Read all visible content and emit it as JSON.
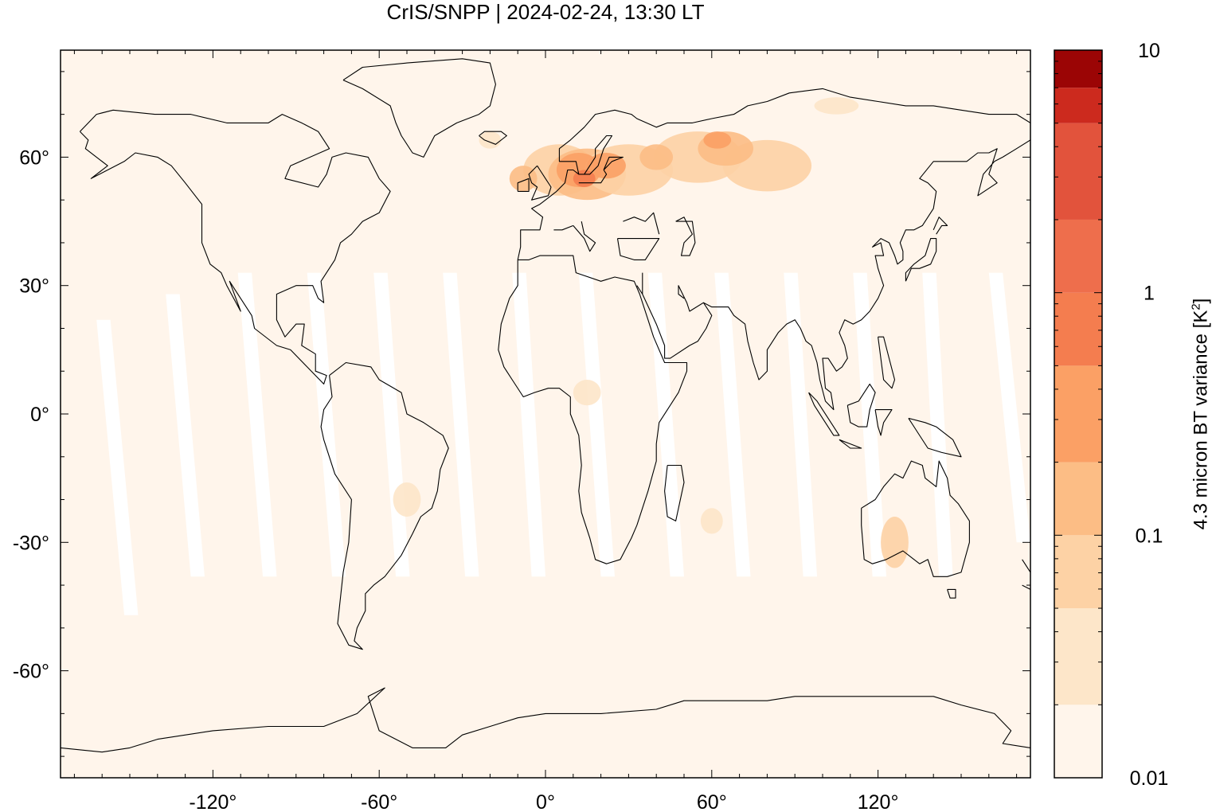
{
  "title": "CrIS/SNPP | 2024-02-24, 13:30 LT",
  "colorbar": {
    "label": "4.3 micron BT variance [K",
    "label_sup": "2",
    "label_end": "]",
    "scale": "log",
    "range": [
      0.01,
      10
    ],
    "tick_labels": [
      "10",
      "1",
      "0.1",
      "0.01"
    ],
    "levels": [
      {
        "lower": 0.01,
        "color": "#fff5eb"
      },
      {
        "lower": 0.02,
        "color": "#fde6c9"
      },
      {
        "lower": 0.05,
        "color": "#fdd2a5"
      },
      {
        "lower": 0.1,
        "color": "#fcbd85"
      },
      {
        "lower": 0.2,
        "color": "#fba065"
      },
      {
        "lower": 0.5,
        "color": "#f47d4f"
      },
      {
        "lower": 1,
        "color": "#ee6e4c"
      },
      {
        "lower": 2,
        "color": "#e2533c"
      },
      {
        "lower": 5,
        "color": "#cc2a1e"
      },
      {
        "lower": 7,
        "color": "#9b0505"
      }
    ]
  },
  "map": {
    "projection": "equirectangular",
    "lon_range": [
      -175,
      175
    ],
    "lat_range": [
      -85,
      85
    ],
    "x_tick_labels": [
      "-120°",
      "-60°",
      "0°",
      "60°",
      "120°"
    ],
    "y_tick_labels": [
      "60°",
      "30°",
      "0°",
      "-30°",
      "-60°"
    ],
    "background_color": "#fff5eb",
    "coastline_color": "#000000",
    "gap_color": "#ffffff"
  }
}
